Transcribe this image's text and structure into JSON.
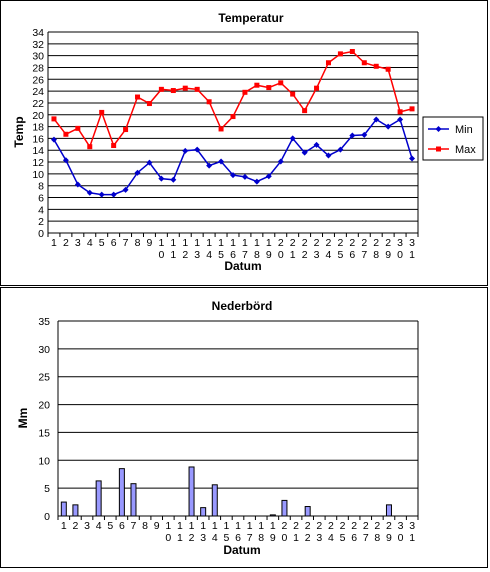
{
  "chart_data": [
    {
      "type": "line",
      "title": "Temperatur",
      "xlabel": "Datum",
      "ylabel": "Temp",
      "ylim": [
        0,
        34
      ],
      "yticks": [
        0,
        2,
        4,
        6,
        8,
        10,
        12,
        14,
        16,
        18,
        20,
        22,
        24,
        26,
        28,
        30,
        32,
        34
      ],
      "grid": true,
      "legend_position": "right",
      "categories": [
        "1",
        "2",
        "3",
        "4",
        "5",
        "6",
        "7",
        "8",
        "9",
        "10",
        "11",
        "12",
        "13",
        "14",
        "15",
        "16",
        "17",
        "18",
        "19",
        "20",
        "21",
        "22",
        "23",
        "24",
        "25",
        "26",
        "27",
        "28",
        "29",
        "30",
        "31"
      ],
      "series": [
        {
          "name": "Min",
          "color": "#0000cc",
          "values": [
            15.8,
            12.3,
            8.2,
            6.8,
            6.5,
            6.5,
            7.3,
            10.2,
            11.9,
            9.2,
            9.0,
            13.9,
            14.1,
            11.4,
            12.1,
            9.8,
            9.5,
            8.7,
            9.6,
            12.1,
            16.0,
            13.6,
            14.9,
            13.1,
            14.1,
            16.5,
            16.6,
            19.2,
            18.0,
            19.2,
            12.6
          ]
        },
        {
          "name": "Max",
          "color": "#ff0000",
          "values": [
            19.3,
            16.7,
            17.7,
            14.6,
            20.4,
            14.8,
            17.5,
            23.0,
            21.9,
            24.3,
            24.1,
            24.5,
            24.3,
            22.2,
            17.6,
            19.7,
            23.8,
            25.0,
            24.6,
            25.4,
            23.5,
            20.7,
            24.5,
            28.8,
            30.3,
            30.7,
            28.8,
            28.2,
            27.7,
            20.5,
            21.0
          ]
        }
      ]
    },
    {
      "type": "bar",
      "title": "Nederbörd",
      "xlabel": "Datum",
      "ylabel": "Mm",
      "ylim": [
        0,
        35
      ],
      "yticks": [
        0,
        5,
        10,
        15,
        20,
        25,
        30,
        35
      ],
      "grid": true,
      "bar_color": "#9999ff",
      "categories": [
        "1",
        "2",
        "3",
        "4",
        "5",
        "6",
        "7",
        "8",
        "9",
        "10",
        "11",
        "12",
        "13",
        "14",
        "15",
        "16",
        "17",
        "18",
        "19",
        "20",
        "21",
        "22",
        "23",
        "24",
        "25",
        "26",
        "27",
        "28",
        "29",
        "30",
        "31"
      ],
      "values": [
        2.5,
        2.0,
        0,
        6.3,
        0,
        8.5,
        5.8,
        0,
        0,
        0,
        0,
        8.8,
        1.5,
        5.6,
        0,
        0,
        0,
        0,
        0.2,
        2.8,
        0,
        1.7,
        0,
        0,
        0,
        0,
        0,
        0,
        2.0,
        0,
        0
      ]
    }
  ]
}
